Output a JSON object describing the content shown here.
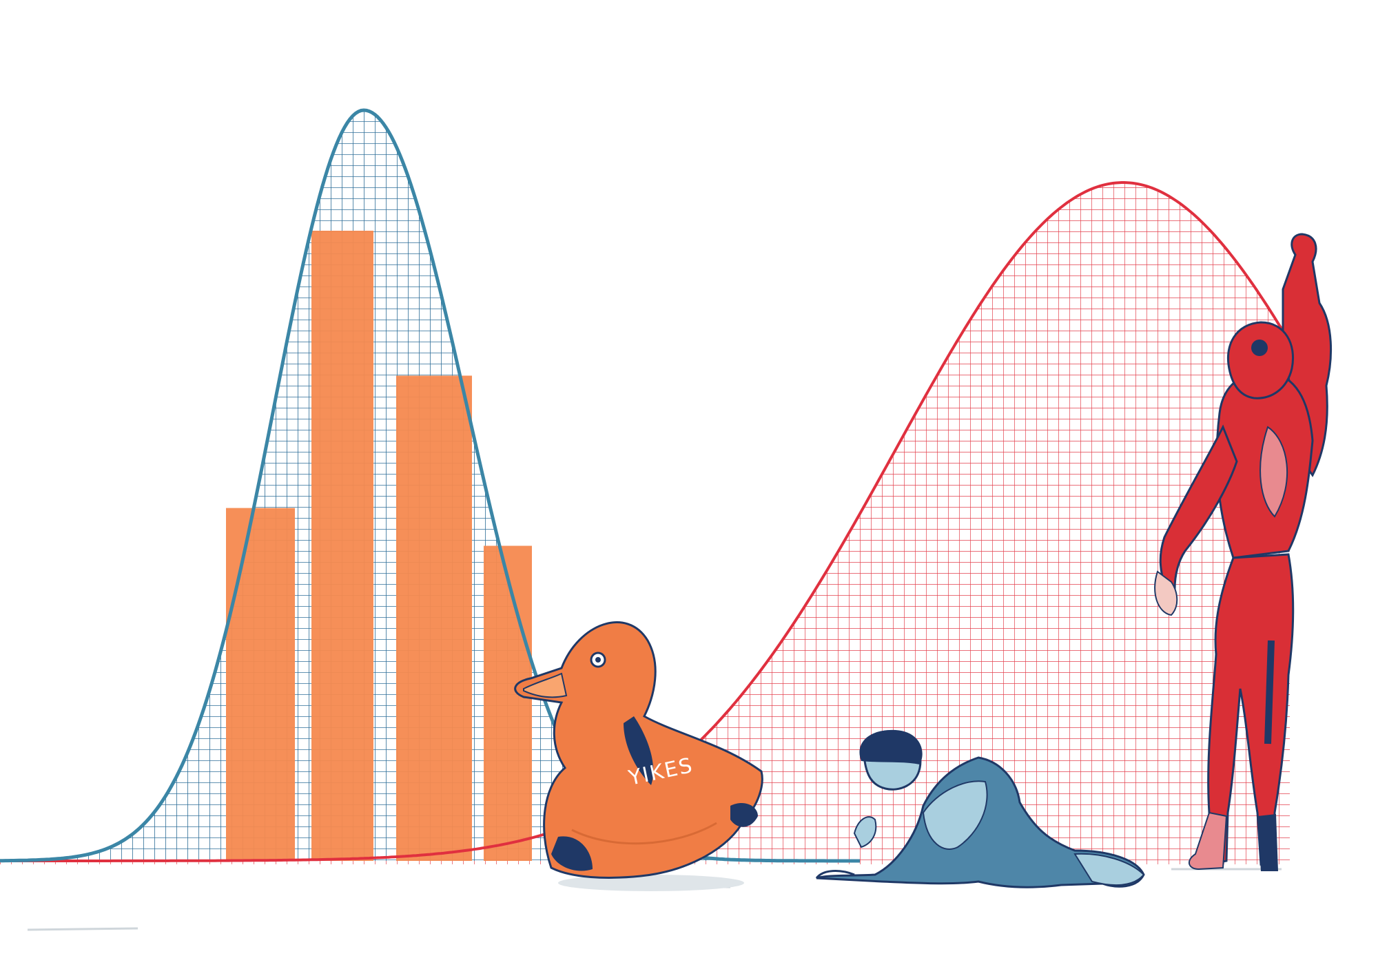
{
  "illustration": {
    "duck_lettering": "YIKES"
  },
  "colors": {
    "background": "#ffffff",
    "blue_curve": "#3b86a6",
    "blue_grid": "#2e6e98",
    "red_curve": "#e0303f",
    "red_grid": "#e3404d",
    "bars": "#f5894f",
    "duck": "#f07d45",
    "duck_spots": "#1f3866",
    "navy": "#1f3866",
    "runner_suit": "#d92f36",
    "sitter_suit": "#4e86a8",
    "sitter_suit_light": "#a9cfdf"
  },
  "bars": {
    "relative_heights": [
      0.56,
      1.0,
      0.77,
      0.5
    ]
  }
}
